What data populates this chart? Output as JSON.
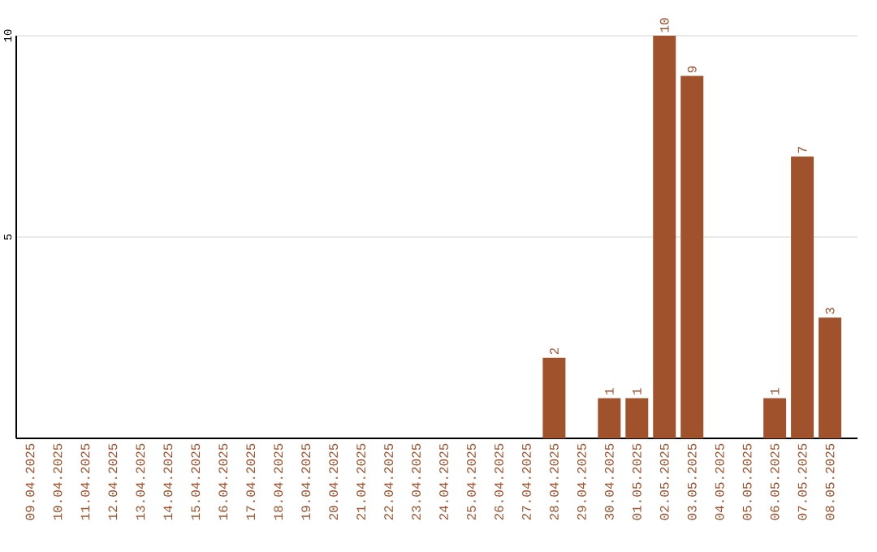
{
  "chart_data": {
    "type": "bar",
    "categories": [
      "09.04.2025",
      "10.04.2025",
      "11.04.2025",
      "12.04.2025",
      "13.04.2025",
      "14.04.2025",
      "15.04.2025",
      "16.04.2025",
      "17.04.2025",
      "18.04.2025",
      "19.04.2025",
      "20.04.2025",
      "21.04.2025",
      "22.04.2025",
      "23.04.2025",
      "24.04.2025",
      "25.04.2025",
      "26.04.2025",
      "27.04.2025",
      "28.04.2025",
      "29.04.2025",
      "30.04.2025",
      "01.05.2025",
      "02.05.2025",
      "03.05.2025",
      "04.05.2025",
      "05.05.2025",
      "06.05.2025",
      "07.05.2025",
      "08.05.2025"
    ],
    "values": [
      0,
      0,
      0,
      0,
      0,
      0,
      0,
      0,
      0,
      0,
      0,
      0,
      0,
      0,
      0,
      0,
      0,
      0,
      0,
      2,
      0,
      1,
      1,
      10,
      9,
      0,
      0,
      1,
      7,
      3
    ],
    "value_labels": [
      null,
      null,
      null,
      null,
      null,
      null,
      null,
      null,
      null,
      null,
      null,
      null,
      null,
      null,
      null,
      null,
      null,
      null,
      null,
      "2",
      null,
      "1",
      "1",
      "10",
      "9",
      null,
      null,
      "1",
      "7",
      "3"
    ],
    "color": "#a0522d",
    "ylim": [
      0,
      10
    ],
    "yticks": [
      5,
      10
    ],
    "grid": "y"
  }
}
